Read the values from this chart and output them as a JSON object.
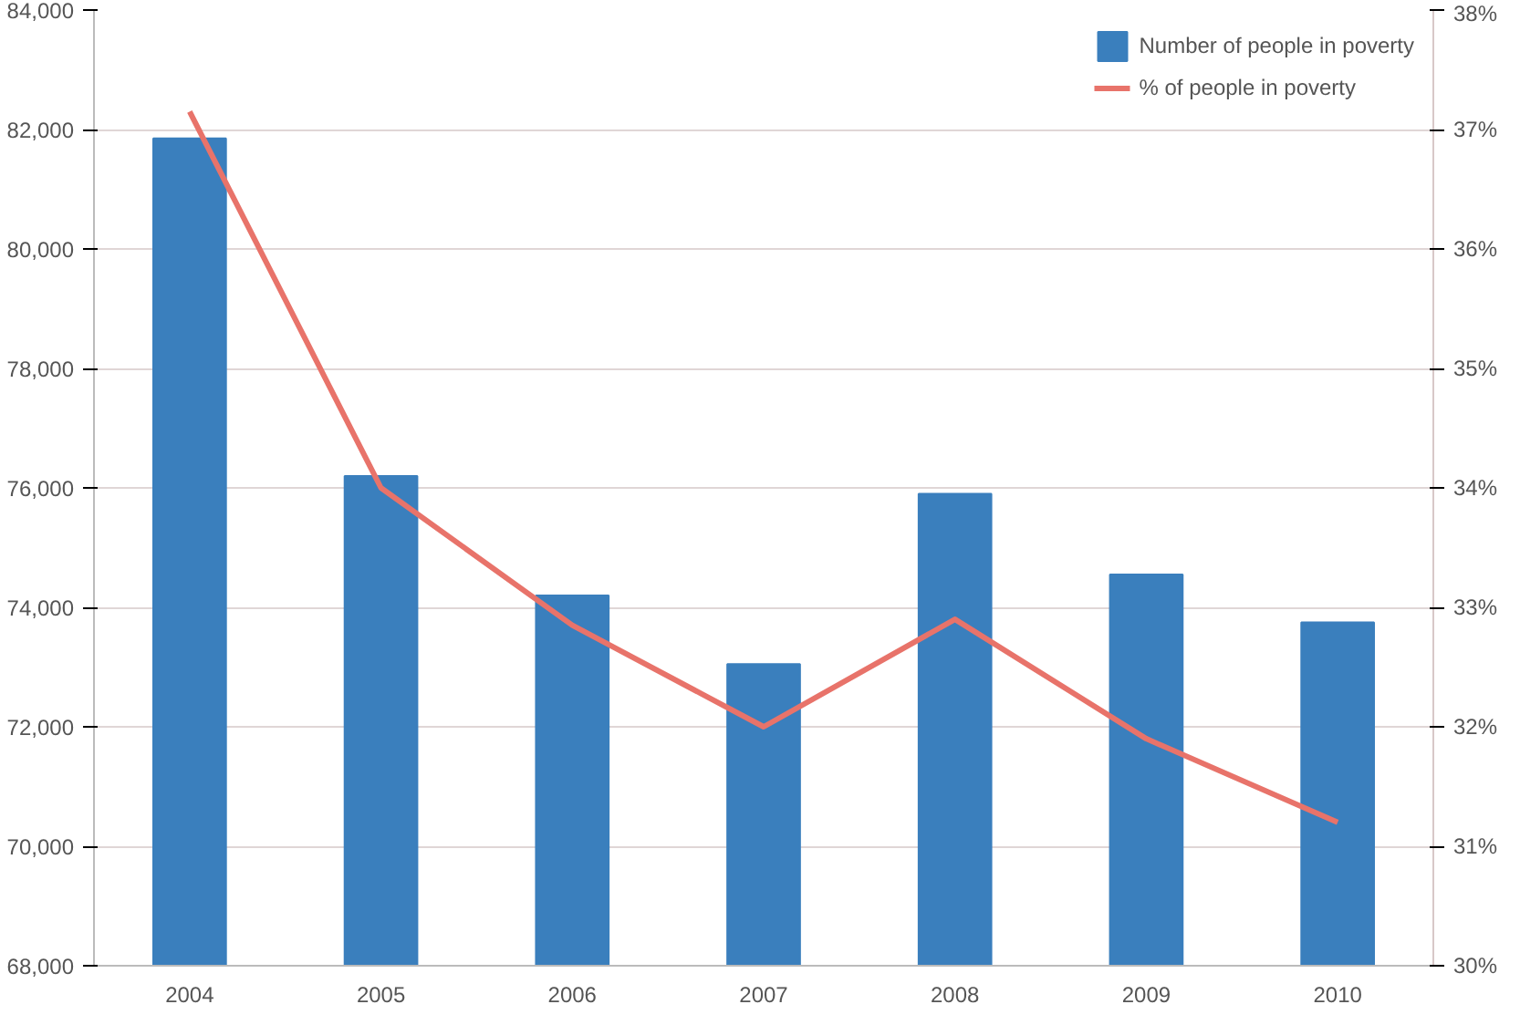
{
  "chart_data": {
    "type": "bar",
    "categories": [
      "2004",
      "2005",
      "2006",
      "2007",
      "2008",
      "2009",
      "2010"
    ],
    "series": [
      {
        "name": "Number of people in poverty",
        "color": "#3a7fbd",
        "values": [
          81850,
          76200,
          74200,
          73050,
          75900,
          74550,
          73750
        ]
      },
      {
        "name": "% of people in poverty",
        "type": "line",
        "axis": "y2",
        "color": "#e8736a",
        "values": [
          37.15,
          34.0,
          32.85,
          32.0,
          32.9,
          31.9,
          31.2
        ]
      }
    ],
    "ylim": [
      68000,
      84000
    ],
    "yticks": [
      {
        "value": 68000,
        "label": "68,000"
      },
      {
        "value": 70000,
        "label": "70,000"
      },
      {
        "value": 72000,
        "label": "72,000"
      },
      {
        "value": 74000,
        "label": "74,000"
      },
      {
        "value": 76000,
        "label": "76,000"
      },
      {
        "value": 78000,
        "label": "78,000"
      },
      {
        "value": 80000,
        "label": "80,000"
      },
      {
        "value": 82000,
        "label": "82,000"
      },
      {
        "value": 84000,
        "label": "84,000"
      }
    ],
    "y2lim": [
      30,
      38
    ],
    "y2ticks": [
      {
        "value": 30,
        "label": "30%"
      },
      {
        "value": 31,
        "label": "31%"
      },
      {
        "value": 32,
        "label": "32%"
      },
      {
        "value": 33,
        "label": "33%"
      },
      {
        "value": 34,
        "label": "34%"
      },
      {
        "value": 35,
        "label": "35%"
      },
      {
        "value": 36,
        "label": "36%"
      },
      {
        "value": 37,
        "label": "37%"
      },
      {
        "value": 38,
        "label": "38%"
      }
    ],
    "grid": "y",
    "legend": "top right"
  }
}
